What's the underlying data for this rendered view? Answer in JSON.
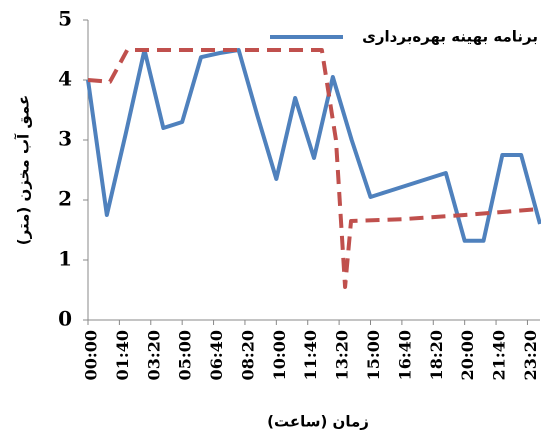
{
  "chart_data": {
    "type": "line",
    "x_label": "زمان (ساعت)",
    "y_label": "عمق آب مخزن (متر)",
    "xlim": [
      0,
      1440
    ],
    "ylim": [
      0,
      5
    ],
    "xticks": [
      {
        "value": 0,
        "label": "00:00"
      },
      {
        "value": 100,
        "label": "01:40"
      },
      {
        "value": 200,
        "label": "03:20"
      },
      {
        "value": 300,
        "label": "05:00"
      },
      {
        "value": 400,
        "label": "06:40"
      },
      {
        "value": 500,
        "label": "08:20"
      },
      {
        "value": 600,
        "label": "10:00"
      },
      {
        "value": 700,
        "label": "11:40"
      },
      {
        "value": 800,
        "label": "13:20"
      },
      {
        "value": 900,
        "label": "15:00"
      },
      {
        "value": 1000,
        "label": "16:40"
      },
      {
        "value": 1100,
        "label": "18:20"
      },
      {
        "value": 1200,
        "label": "20:00"
      },
      {
        "value": 1300,
        "label": "21:40"
      },
      {
        "value": 1400,
        "label": "23:20"
      }
    ],
    "yticks": [
      0,
      1,
      2,
      3,
      4,
      5
    ],
    "legend": "top-right",
    "series": [
      {
        "name": "برنامه بهینه بهره‌برداری",
        "color": "#4f81bd",
        "dash": false,
        "x": [
          0,
          60,
          120,
          180,
          240,
          300,
          360,
          420,
          480,
          540,
          600,
          660,
          720,
          780,
          840,
          900,
          960,
          1020,
          1080,
          1140,
          1200,
          1260,
          1320,
          1380,
          1440
        ],
        "values": [
          4.0,
          1.75,
          3.1,
          4.5,
          3.2,
          3.3,
          4.38,
          4.45,
          4.5,
          3.4,
          2.35,
          3.7,
          2.7,
          4.05,
          3.0,
          2.05,
          2.15,
          2.25,
          2.35,
          2.45,
          1.32,
          1.32,
          2.75,
          2.75,
          1.6
        ]
      },
      {
        "color": "#c0504d",
        "dash": true,
        "x": [
          0,
          70,
          125,
          745,
          790,
          819,
          838,
          1000,
          1200,
          1440
        ],
        "values": [
          4.0,
          3.97,
          4.5,
          4.5,
          3.0,
          0.55,
          1.65,
          1.68,
          1.75,
          1.85
        ]
      }
    ]
  }
}
